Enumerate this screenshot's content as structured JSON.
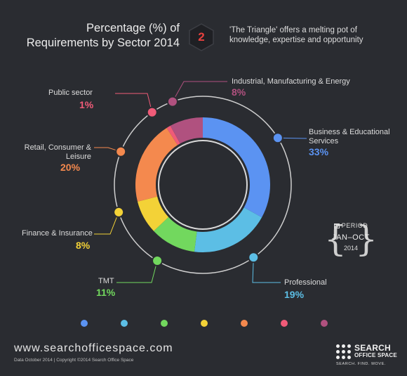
{
  "header": {
    "title_line1": "Percentage (%) of",
    "title_line2": "Requirements by Sector 2014",
    "badge_number": "2",
    "tagline": "'The Triangle' offers a melting pot of knowledge, expertise and opportunity"
  },
  "chart_data": {
    "type": "pie",
    "title": "Percentage (%) of Requirements by Sector 2014",
    "slices": [
      {
        "label": "Business & Educational Services",
        "value": 33,
        "display": "33%",
        "color": "#5b93f2"
      },
      {
        "label": "Professional",
        "value": 19,
        "display": "19%",
        "color": "#5cbee5"
      },
      {
        "label": "TMT",
        "value": 11,
        "display": "11%",
        "color": "#72d85e"
      },
      {
        "label": "Finance & Insurance",
        "value": 8,
        "display": "8%",
        "color": "#f3d237"
      },
      {
        "label": "Retail, Consumer & Leisure",
        "value": 20,
        "display": "20%",
        "color": "#f4894e"
      },
      {
        "label": "Public sector",
        "value": 1,
        "display": "1%",
        "color": "#f05b78"
      },
      {
        "label": "Industrial, Manufacturing & Energy",
        "value": 8,
        "display": "8%",
        "color": "#b0517f"
      }
    ]
  },
  "labels": {
    "business": {
      "name_line1": "Business & Educational",
      "name_line2": "Services",
      "pct": "33%"
    },
    "professional": {
      "name": "Professional",
      "pct": "19%"
    },
    "tmt": {
      "name": "TMT",
      "pct": "11%"
    },
    "finance": {
      "name": "Finance & Insurance",
      "pct": "8%"
    },
    "retail": {
      "name_line1": "Retail, Consumer &",
      "name_line2": "Leisure",
      "pct": "20%"
    },
    "public": {
      "name": "Public sector",
      "pct": "1%"
    },
    "industrial": {
      "name": "Industrial, Manufacturing & Energy",
      "pct": "8%"
    }
  },
  "period": {
    "label": "PERIOD",
    "range": "JAN–OCT",
    "year": "2014",
    "icon": "calendar-icon"
  },
  "footer": {
    "website": "www.searchofficespace.com",
    "note": "Data October 2014   |   Copyright ©2014 Search Office Space"
  },
  "brand": {
    "line1": "SEARCH",
    "line2": "OFFICE SPACE",
    "tagline": "SEARCH. FIND. MOVE.",
    "icon": "dot-grid-logo-icon"
  },
  "colors": {
    "background": "#2a2c31",
    "badge_red": "#e8413e"
  }
}
